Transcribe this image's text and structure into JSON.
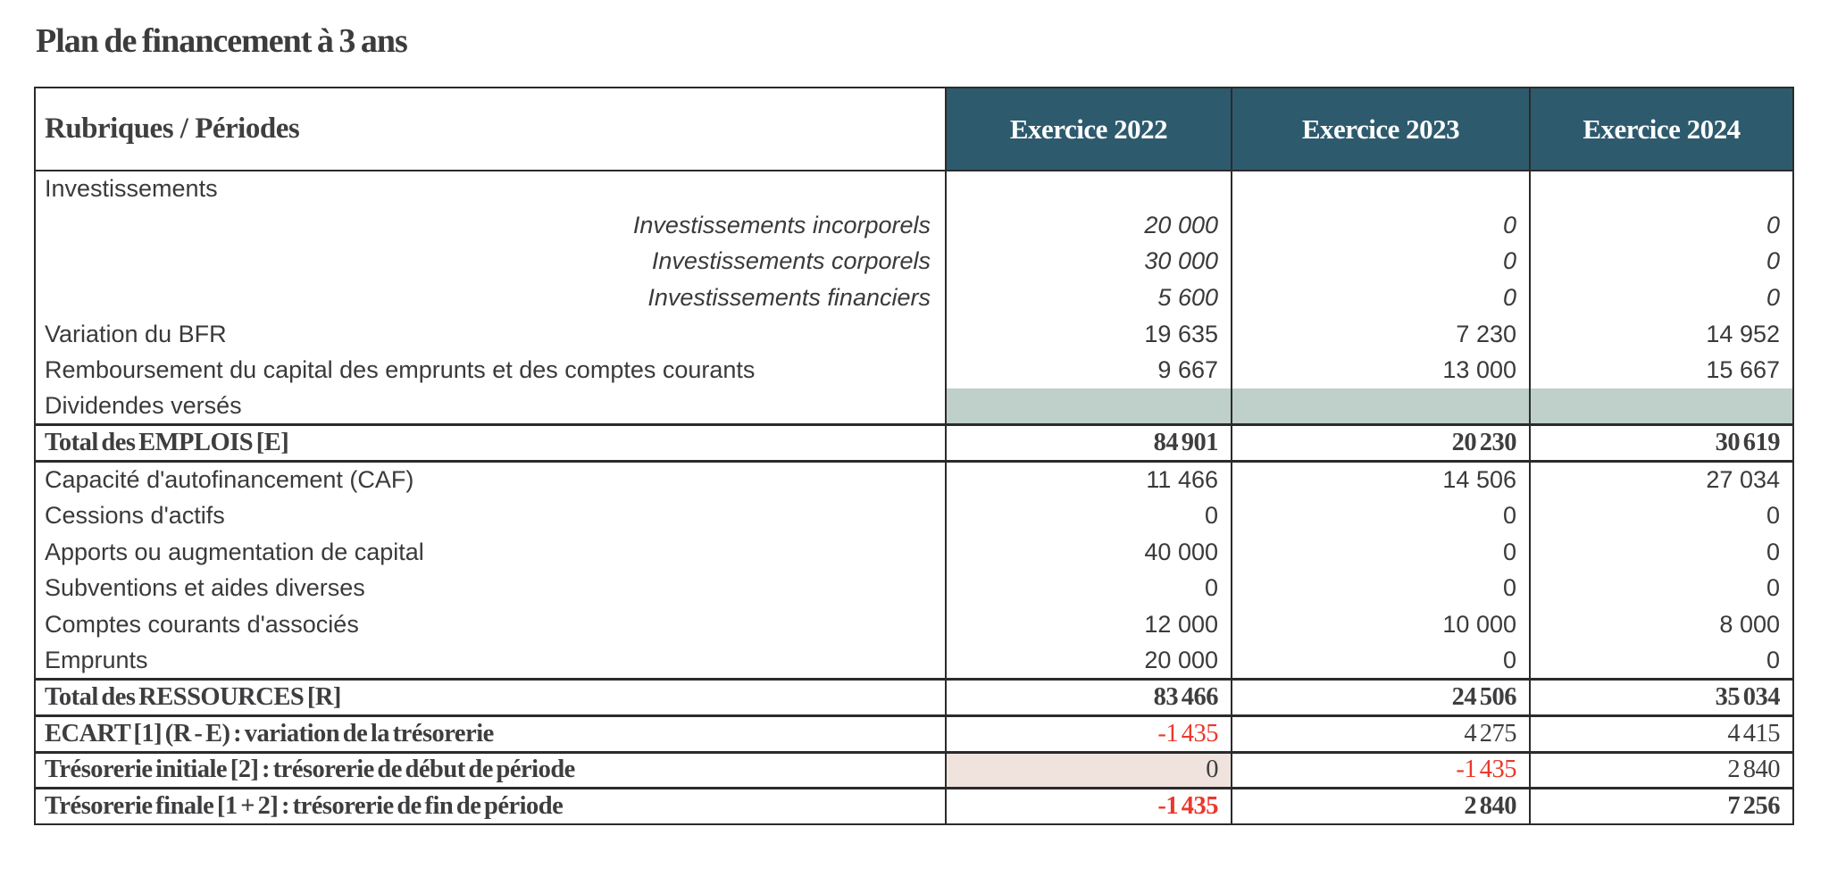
{
  "page": {
    "title": "Plan de financement à 3 ans"
  },
  "table": {
    "header": {
      "label": "Rubriques / Périodes",
      "columns": [
        "Exercice 2022",
        "Exercice 2023",
        "Exercice 2024"
      ]
    },
    "rows": [
      {
        "label": "Investissements",
        "style": "plain",
        "values": [
          "",
          "",
          ""
        ]
      },
      {
        "label": "Investissements incorporels",
        "style": "detail",
        "values": [
          "20 000",
          "0",
          "0"
        ]
      },
      {
        "label": "Investissements corporels",
        "style": "detail",
        "values": [
          "30 000",
          "0",
          "0"
        ]
      },
      {
        "label": "Investissements financiers",
        "style": "detail",
        "values": [
          "5 600",
          "0",
          "0"
        ]
      },
      {
        "label": "Variation du BFR",
        "style": "plain",
        "values": [
          "19 635",
          "7 230",
          "14 952"
        ]
      },
      {
        "label": "Remboursement du capital des emprunts et des comptes courants",
        "style": "plain",
        "values": [
          "9 667",
          "13 000",
          "15 667"
        ]
      },
      {
        "label": "Dividendes versés",
        "style": "plain",
        "values": [
          "",
          "",
          ""
        ],
        "cell_bg": [
          "green",
          "green",
          "green"
        ]
      },
      {
        "label": "Total des EMPLOIS [E]",
        "style": "total",
        "values": [
          "84 901",
          "20 230",
          "30 619"
        ]
      },
      {
        "label": "Capacité d'autofinancement (CAF)",
        "style": "plain",
        "values": [
          "11 466",
          "14 506",
          "27 034"
        ]
      },
      {
        "label": "Cessions d'actifs",
        "style": "plain",
        "values": [
          "0",
          "0",
          "0"
        ]
      },
      {
        "label": "Apports ou augmentation de capital",
        "style": "plain",
        "values": [
          "40 000",
          "0",
          "0"
        ]
      },
      {
        "label": "Subventions et aides diverses",
        "style": "plain",
        "values": [
          "0",
          "0",
          "0"
        ]
      },
      {
        "label": "Comptes courants d'associés",
        "style": "plain",
        "values": [
          "12 000",
          "10 000",
          "8 000"
        ]
      },
      {
        "label": "Emprunts",
        "style": "plain",
        "values": [
          "20 000",
          "0",
          "0"
        ]
      },
      {
        "label": "Total des RESSOURCES [R]",
        "style": "total",
        "values": [
          "83 466",
          "24 506",
          "35 034"
        ]
      },
      {
        "label": "ECART [1] (R - E) : variation de la trésorerie",
        "style": "summary",
        "values": [
          "-1 435",
          "4 275",
          "4 415"
        ]
      },
      {
        "label": "Trésorerie initiale [2] : trésorerie de début de période",
        "style": "summary",
        "values": [
          "0",
          "-1 435",
          "2 840"
        ],
        "cell_bg": [
          "beige",
          null,
          null
        ]
      },
      {
        "label": "Trésorerie finale [1 + 2] : trésorerie de fin de période",
        "style": "summary_bold",
        "values": [
          "-1 435",
          "2 840",
          "7 256"
        ]
      }
    ],
    "colors": {
      "header_bg": "#2e5a6d",
      "header_text": "#fdfdfd",
      "highlight_green": "#bfcfc9",
      "highlight_beige": "#f0e3de",
      "negative_red": "#ea382b"
    }
  }
}
